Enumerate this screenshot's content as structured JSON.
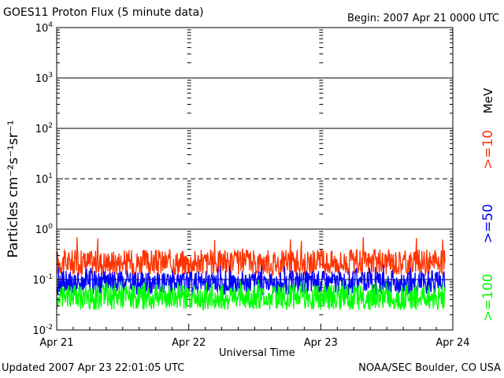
{
  "header": {
    "title": "GOES11 Proton Flux (5 minute data)",
    "begin": "Begin: 2007 Apr 21 0000 UTC"
  },
  "footer": {
    "updated": "Updated 2007 Apr 23 22:01:05 UTC",
    "credit": "NOAA/SEC Boulder, CO USA"
  },
  "colors": {
    "ge10": "#ff3300",
    "ge50": "#0000ff",
    "ge100": "#00ff00"
  },
  "chart_data": {
    "type": "line",
    "yscale": "log",
    "ylim": [
      0.01,
      10000
    ],
    "xlim": [
      "2007-04-21",
      "2007-04-24"
    ],
    "xlabel": "Universal Time",
    "ylabel": "Particles cm⁻²s⁻¹sr⁻¹",
    "unit_label": "MeV",
    "x_ticks": [
      "Apr 21",
      "Apr 22",
      "Apr 23",
      "Apr 24"
    ],
    "y_ticks": [
      {
        "base": "10",
        "exp": "4"
      },
      {
        "base": "10",
        "exp": "3"
      },
      {
        "base": "10",
        "exp": "2"
      },
      {
        "base": "10",
        "exp": "1"
      },
      {
        "base": "10",
        "exp": "0"
      },
      {
        "base": "10",
        "exp": "-1"
      },
      {
        "base": "10",
        "exp": "-2"
      }
    ],
    "thresholds": [
      {
        "value": 1000,
        "style": "solid"
      },
      {
        "value": 100,
        "style": "solid"
      },
      {
        "value": 10,
        "style": "dashed"
      },
      {
        "value": 1,
        "style": "solid"
      },
      {
        "value": 0.1,
        "style": "solid"
      }
    ],
    "series": [
      {
        "name": ">=10",
        "color": "#ff3300",
        "typical_range": [
          0.12,
          0.4
        ],
        "peak": 0.7
      },
      {
        "name": ">=50",
        "color": "#0000ff",
        "typical_range": [
          0.05,
          0.15
        ],
        "peak": 0.2
      },
      {
        "name": ">=100",
        "color": "#00ff00",
        "typical_range": [
          0.025,
          0.08
        ],
        "peak": 0.1
      }
    ]
  }
}
